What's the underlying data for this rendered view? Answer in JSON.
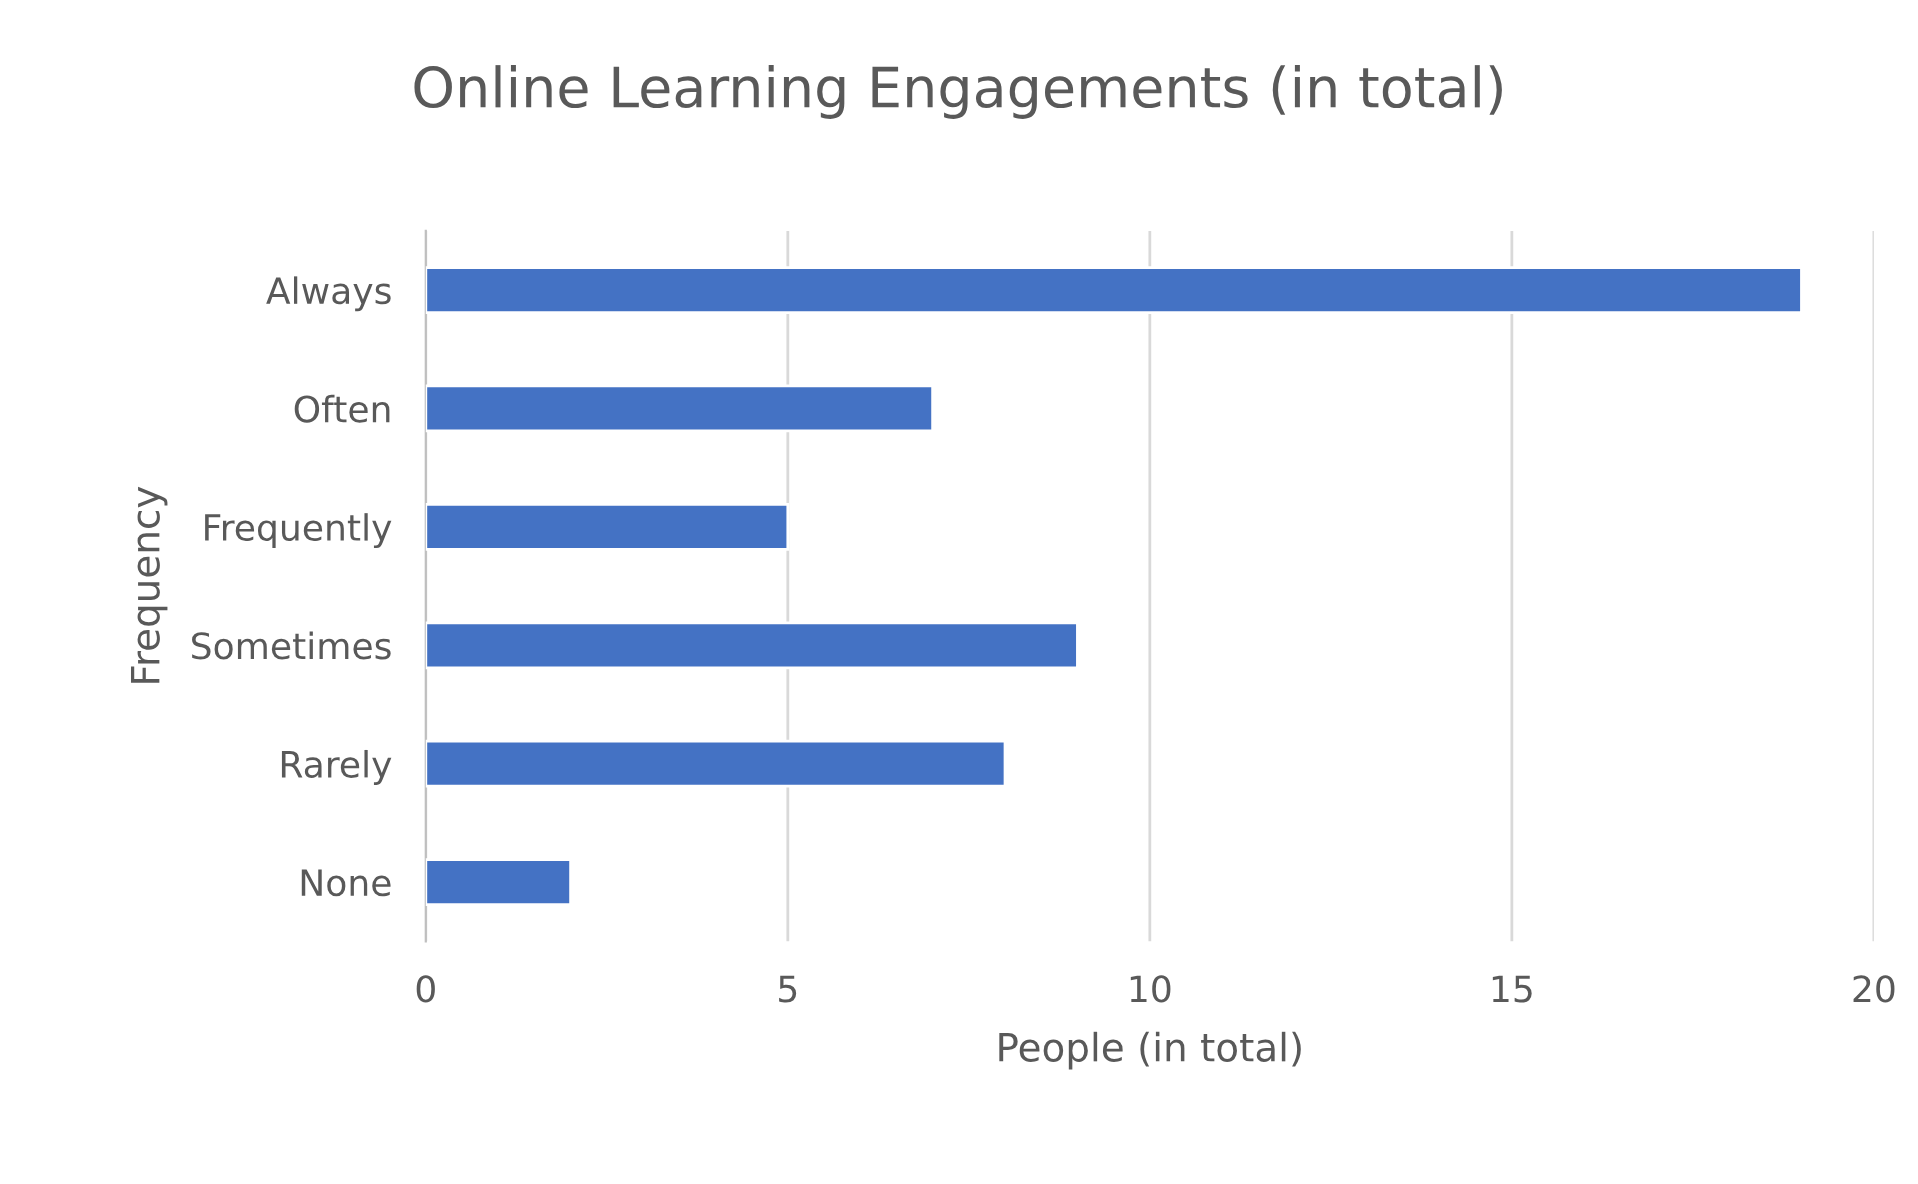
{
  "chart_data": {
    "type": "bar",
    "orientation": "horizontal",
    "title": "Online Learning Engagements (in total)",
    "xlabel": "People (in total)",
    "ylabel": "Frequency",
    "categories": [
      "Always",
      "Often",
      "Frequently",
      "Sometimes",
      "Rarely",
      "None"
    ],
    "values": [
      19,
      7,
      5,
      9,
      8,
      2
    ],
    "color": "#4472c4",
    "xlim": [
      0,
      20
    ],
    "xticks": [
      0,
      5,
      10,
      15,
      20
    ],
    "grid": "x",
    "legend": false
  }
}
